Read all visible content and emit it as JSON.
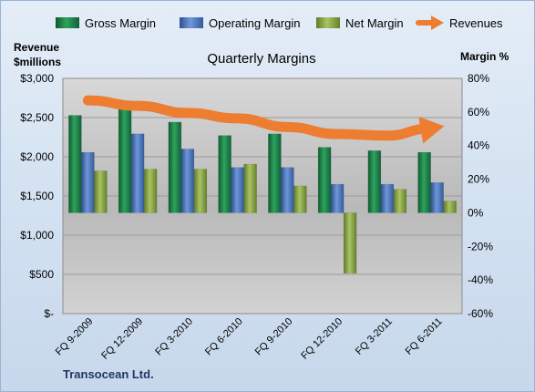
{
  "chart_data": {
    "type": "bar",
    "title": "Quarterly Margins",
    "left_axis_label_line1": "Revenue",
    "left_axis_label_line2": "$millions",
    "right_axis_label": "Margin %",
    "footer": "Transocean Ltd.",
    "categories": [
      "FQ 9-2009",
      "FQ 12-2009",
      "FQ 3-2010",
      "FQ 6-2010",
      "FQ 9-2010",
      "FQ 12-2010",
      "FQ 3-2011",
      "FQ 6-2011"
    ],
    "left_ylim": [
      0,
      3000
    ],
    "left_ticks": [
      0,
      500,
      1000,
      1500,
      2000,
      2500,
      3000
    ],
    "left_tick_labels": [
      "$-",
      "$500",
      "$1,000",
      "$1,500",
      "$2,000",
      "$2,500",
      "$3,000"
    ],
    "right_ylim": [
      -60,
      80
    ],
    "right_ticks": [
      -60,
      -40,
      -20,
      0,
      20,
      40,
      60,
      80
    ],
    "right_tick_labels": [
      "-60%",
      "-40%",
      "-20%",
      "0%",
      "20%",
      "40%",
      "60%",
      "80%"
    ],
    "series": [
      {
        "name": "Gross Margin",
        "axis": "right",
        "color": "#1e7a44",
        "values": [
          58,
          62,
          54,
          46,
          47,
          39,
          37,
          36
        ]
      },
      {
        "name": "Operating Margin",
        "axis": "right",
        "color": "#4a72b8",
        "values": [
          36,
          47,
          38,
          27,
          27,
          17,
          17,
          18
        ]
      },
      {
        "name": "Net Margin",
        "axis": "right",
        "color": "#8aa64a",
        "values": [
          25,
          26,
          26,
          29,
          16,
          -36,
          14,
          7
        ]
      },
      {
        "name": "Revenues",
        "axis": "left",
        "type": "arrow",
        "color": "#ed7d31",
        "values": [
          2720,
          2650,
          2560,
          2490,
          2380,
          2290,
          2270,
          2360
        ]
      }
    ]
  }
}
